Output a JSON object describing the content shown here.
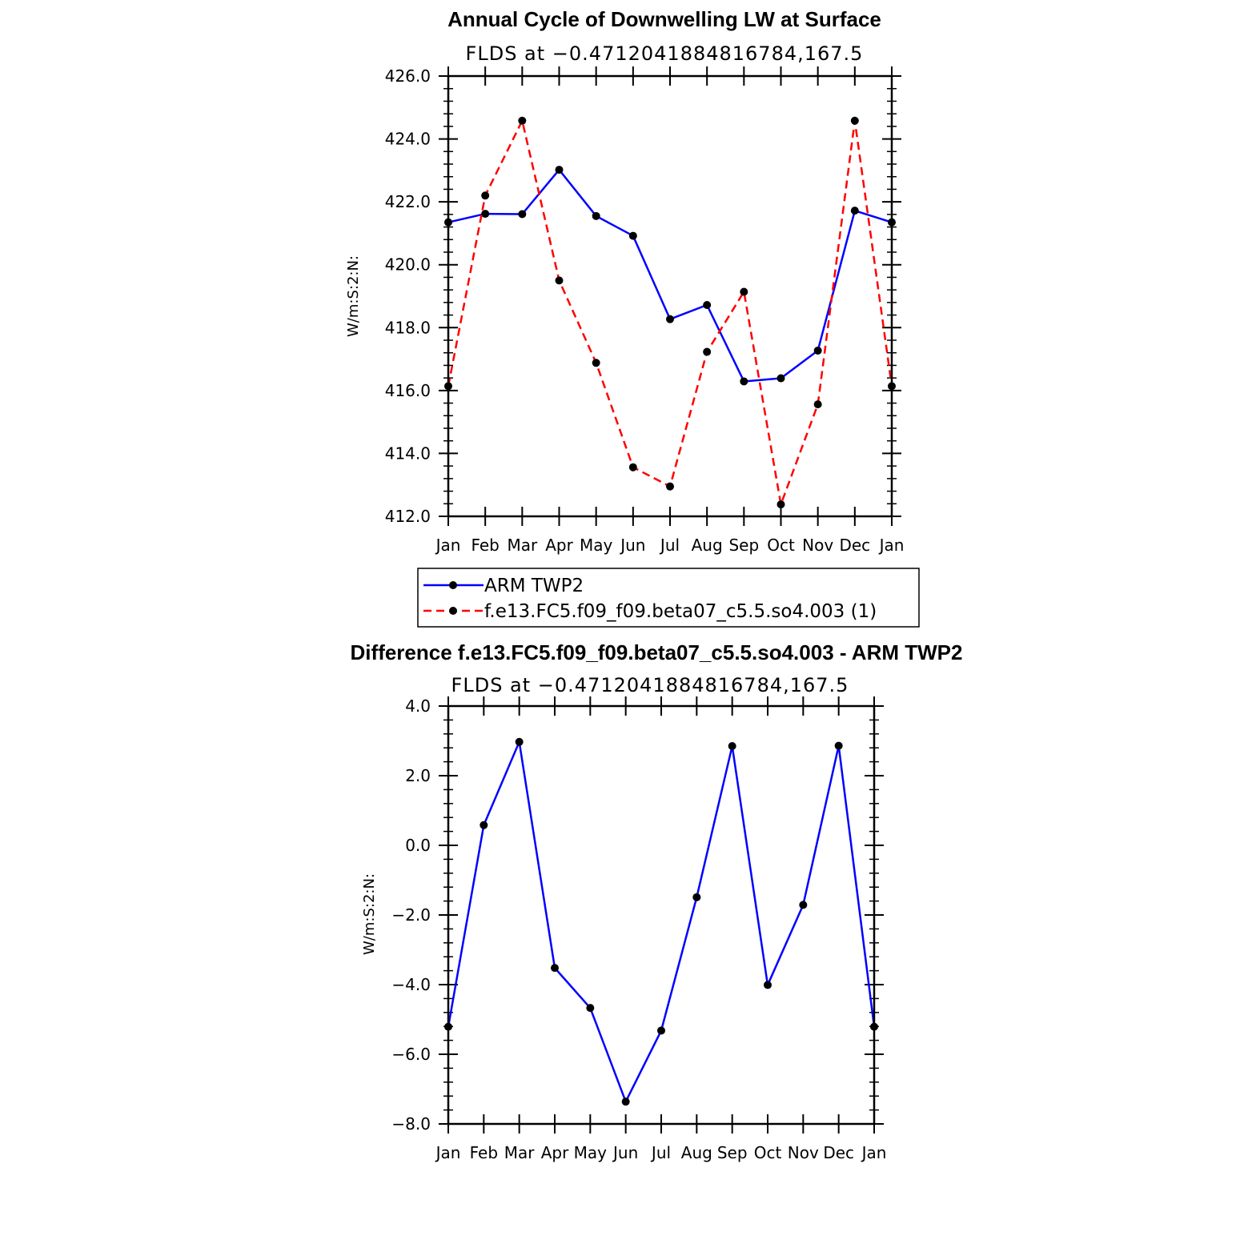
{
  "chart_data": [
    {
      "type": "line",
      "title": "Annual Cycle of Downwelling LW at Surface",
      "subtitle": "FLDS at −0.4712041884816784,167.5",
      "xlabel": "",
      "ylabel": "W/m:S:2:N:",
      "categories": [
        "Jan",
        "Feb",
        "Mar",
        "Apr",
        "May",
        "Jun",
        "Jul",
        "Aug",
        "Sep",
        "Oct",
        "Nov",
        "Dec",
        "Jan"
      ],
      "ylim": [
        412.0,
        426.0
      ],
      "yticks": [
        "412.0",
        "414.0",
        "416.0",
        "418.0",
        "420.0",
        "422.0",
        "424.0",
        "426.0"
      ],
      "series": [
        {
          "name": "ARM TWP2",
          "color": "#0000ff",
          "dash": "solid",
          "values": [
            421.35,
            421.62,
            421.61,
            423.02,
            421.55,
            420.92,
            418.27,
            418.72,
            416.29,
            416.39,
            417.27,
            421.72,
            421.35
          ]
        },
        {
          "name": "f.e13.FC5.f09_f09.beta07_c5.5.so4.003 (1)",
          "color": "#ff0000",
          "dash": "dashed",
          "values": [
            416.14,
            422.2,
            424.58,
            419.5,
            416.88,
            413.56,
            412.95,
            417.23,
            419.14,
            412.38,
            415.56,
            424.58,
            416.14
          ]
        }
      ],
      "legend": {
        "position": "bottom"
      }
    },
    {
      "type": "line",
      "title": "Difference f.e13.FC5.f09_f09.beta07_c5.5.so4.003 - ARM TWP2",
      "subtitle": "FLDS at −0.4712041884816784,167.5",
      "xlabel": "",
      "ylabel": "W/m:S:2:N:",
      "categories": [
        "Jan",
        "Feb",
        "Mar",
        "Apr",
        "May",
        "Jun",
        "Jul",
        "Aug",
        "Sep",
        "Oct",
        "Nov",
        "Dec",
        "Jan"
      ],
      "ylim": [
        -8.0,
        4.0
      ],
      "yticks": [
        "−8.0",
        "−6.0",
        "−4.0",
        "−2.0",
        "0.0",
        "2.0",
        "4.0"
      ],
      "series": [
        {
          "name": "Difference",
          "color": "#0000ff",
          "dash": "solid",
          "values": [
            -5.21,
            0.58,
            2.97,
            -3.52,
            -4.67,
            -7.36,
            -5.32,
            -1.49,
            2.85,
            -4.01,
            -1.71,
            2.86,
            -5.21
          ]
        }
      ]
    }
  ]
}
